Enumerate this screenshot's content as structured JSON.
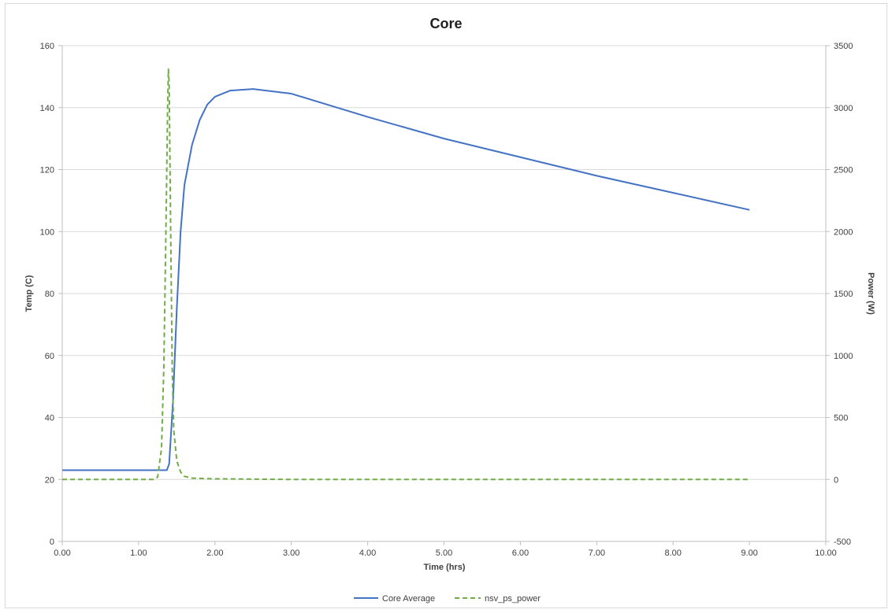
{
  "chart_data": {
    "type": "line",
    "title": "Core",
    "xlabel": "Time (hrs)",
    "ylabel": "Temp (C)",
    "y2label": "Power (W)",
    "xlim": [
      0,
      10
    ],
    "ylim": [
      0,
      160
    ],
    "y2lim": [
      -500,
      3500
    ],
    "x_ticks": [
      "0.00",
      "1.00",
      "2.00",
      "3.00",
      "4.00",
      "5.00",
      "6.00",
      "7.00",
      "8.00",
      "9.00",
      "10.00"
    ],
    "y_ticks": [
      "0",
      "20",
      "40",
      "60",
      "80",
      "100",
      "120",
      "140",
      "160"
    ],
    "y2_ticks": [
      "-500",
      "0",
      "500",
      "1000",
      "1500",
      "2000",
      "2500",
      "3000",
      "3500"
    ],
    "grid": true,
    "legend_position": "bottom",
    "series": [
      {
        "name": "Core Average",
        "axis": "left",
        "color": "#4472c4",
        "style": "solid",
        "x": [
          0.0,
          1.0,
          1.3,
          1.37,
          1.4,
          1.45,
          1.5,
          1.55,
          1.6,
          1.7,
          1.8,
          1.9,
          2.0,
          2.2,
          2.5,
          3.0,
          4.0,
          5.0,
          6.0,
          7.0,
          8.0,
          9.0
        ],
        "values": [
          23,
          23,
          23,
          23,
          25,
          45,
          75,
          100,
          115,
          128,
          136,
          141,
          143.5,
          145.5,
          146,
          144.5,
          137,
          130,
          124,
          118,
          112.5,
          107
        ]
      },
      {
        "name": "nsv_ps_power",
        "axis": "right",
        "color": "#70ad47",
        "style": "dashed",
        "x": [
          0.0,
          1.2,
          1.25,
          1.3,
          1.33,
          1.36,
          1.38,
          1.39,
          1.4,
          1.42,
          1.44,
          1.46,
          1.5,
          1.55,
          1.6,
          1.7,
          2.0,
          3.0,
          9.0
        ],
        "values": [
          0,
          0,
          20,
          250,
          900,
          2100,
          3000,
          3310,
          3200,
          2000,
          900,
          400,
          150,
          60,
          25,
          10,
          5,
          0,
          0
        ]
      }
    ]
  }
}
